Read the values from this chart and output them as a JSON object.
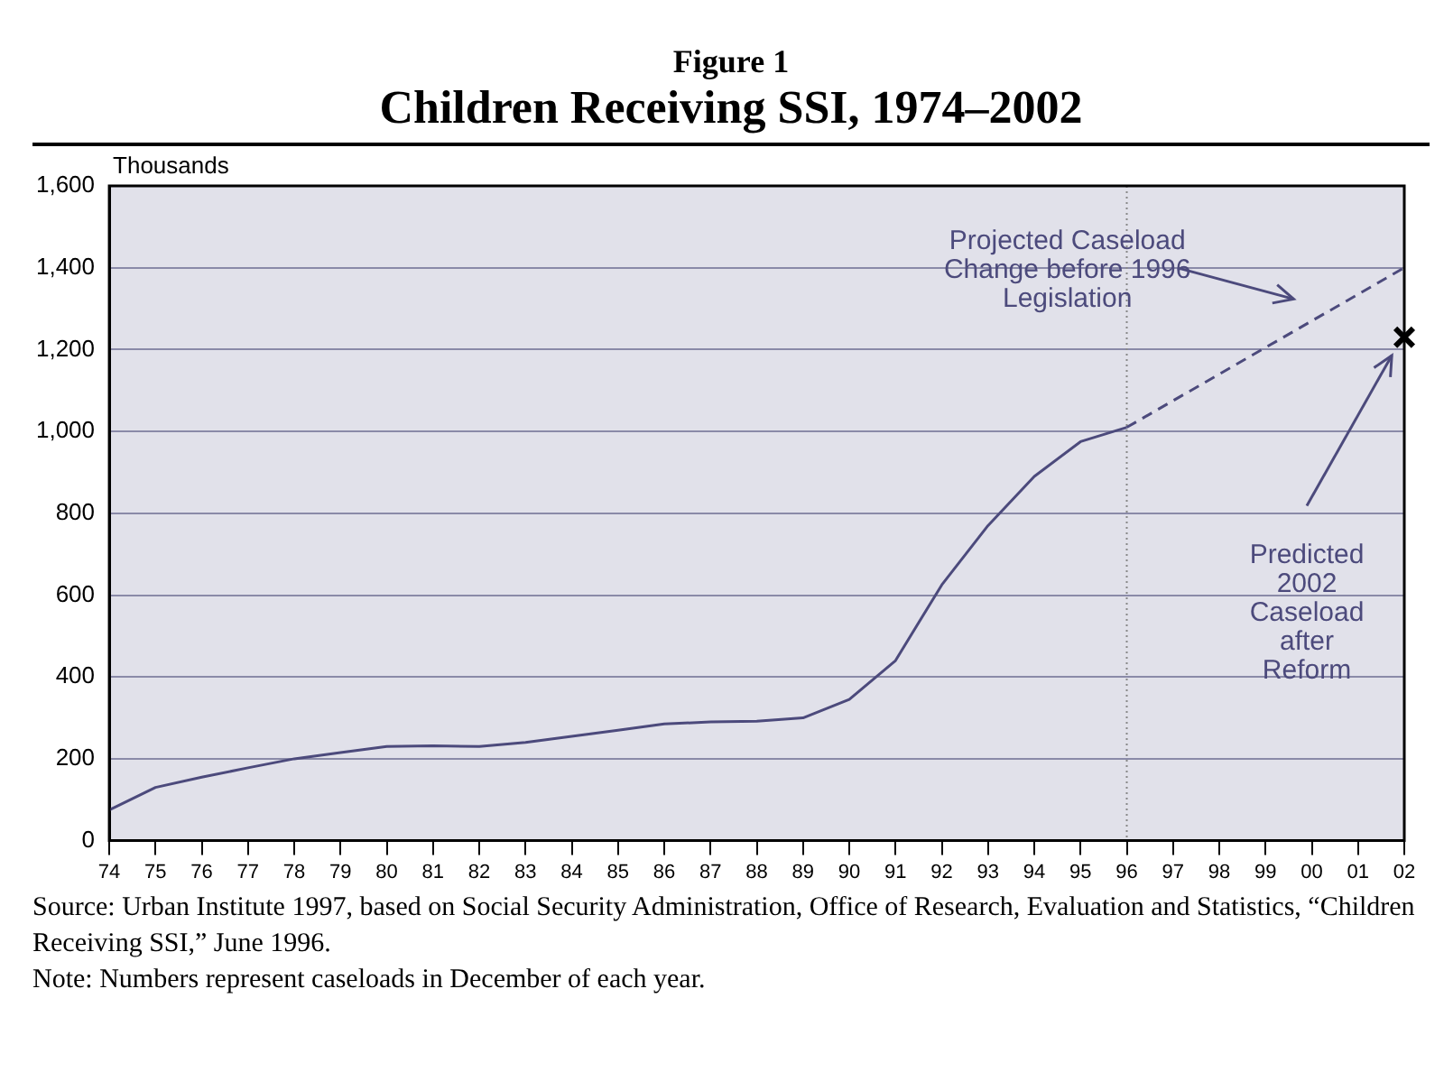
{
  "chart_data": {
    "type": "line",
    "subtitle": "Figure 1",
    "title": "Children Receiving SSI, 1974–2002",
    "ylabel": "Thousands",
    "categories": [
      "74",
      "75",
      "76",
      "77",
      "78",
      "79",
      "80",
      "81",
      "82",
      "83",
      "84",
      "85",
      "86",
      "87",
      "88",
      "89",
      "90",
      "91",
      "92",
      "93",
      "94",
      "95",
      "96",
      "97",
      "98",
      "99",
      "00",
      "01",
      "02"
    ],
    "series": [
      {
        "color": "#4c4a7c",
        "line_style": "solid",
        "marker": "none",
        "values": [
          75,
          130,
          155,
          178,
          200,
          215,
          230,
          232,
          230,
          240,
          255,
          270,
          285,
          290,
          292,
          300,
          345,
          440,
          625,
          770,
          890,
          975,
          1010,
          null,
          null,
          null,
          null,
          null,
          null
        ]
      },
      {
        "color": "#4c4a7c",
        "line_style": "dashed",
        "marker": "none",
        "x": [
          "96",
          "02"
        ],
        "values": [
          1010,
          1400
        ]
      },
      {
        "type": "scatter",
        "color": "#000000",
        "marker": "cross",
        "x": [
          "02"
        ],
        "values": [
          1230
        ]
      }
    ],
    "ylim": [
      0,
      1600
    ],
    "yticks": [
      0,
      200,
      400,
      600,
      800,
      {
        "value": 1000,
        "label": "1,000"
      },
      {
        "value": 1200,
        "label": "1,200"
      },
      {
        "value": 1400,
        "label": "1,400"
      },
      {
        "value": 1600,
        "label": "1,600"
      }
    ],
    "grid": "y",
    "legend": false,
    "ref_lines": [
      {
        "axis": "x",
        "value": "96",
        "color": "#888888",
        "line_style": "dotted"
      }
    ],
    "annotations": [
      "Projected Caseload Change before 1996 Legislation",
      "Predicted 2002 Caseload after Reform",
      "Source: Urban Institute 1997, based on Social Security Administration, Office of Research, Evaluation and Statistics, “Children Receiving SSI,” June 1996.",
      "Note: Numbers represent caseloads in December of each year."
    ]
  }
}
